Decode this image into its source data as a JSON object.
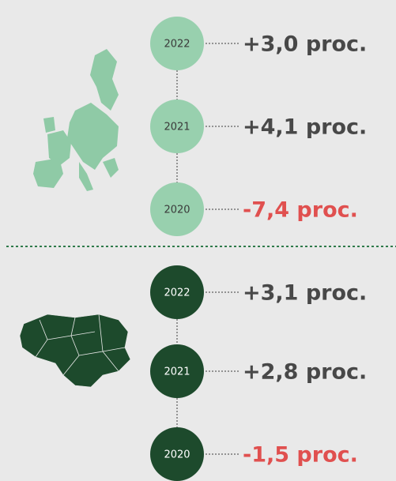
{
  "sections": [
    {
      "items": [
        {
          "year": "2022",
          "value": "+3,0 proc."
        },
        {
          "year": "2021",
          "value": "+4,1 proc."
        },
        {
          "year": "2020",
          "value": "-7,4 proc."
        }
      ]
    },
    {
      "items": [
        {
          "year": "2022",
          "value": "+3,1 proc."
        },
        {
          "year": "2021",
          "value": "+2,8 proc."
        },
        {
          "year": "2020",
          "value": "-1,5 proc."
        }
      ]
    }
  ]
}
